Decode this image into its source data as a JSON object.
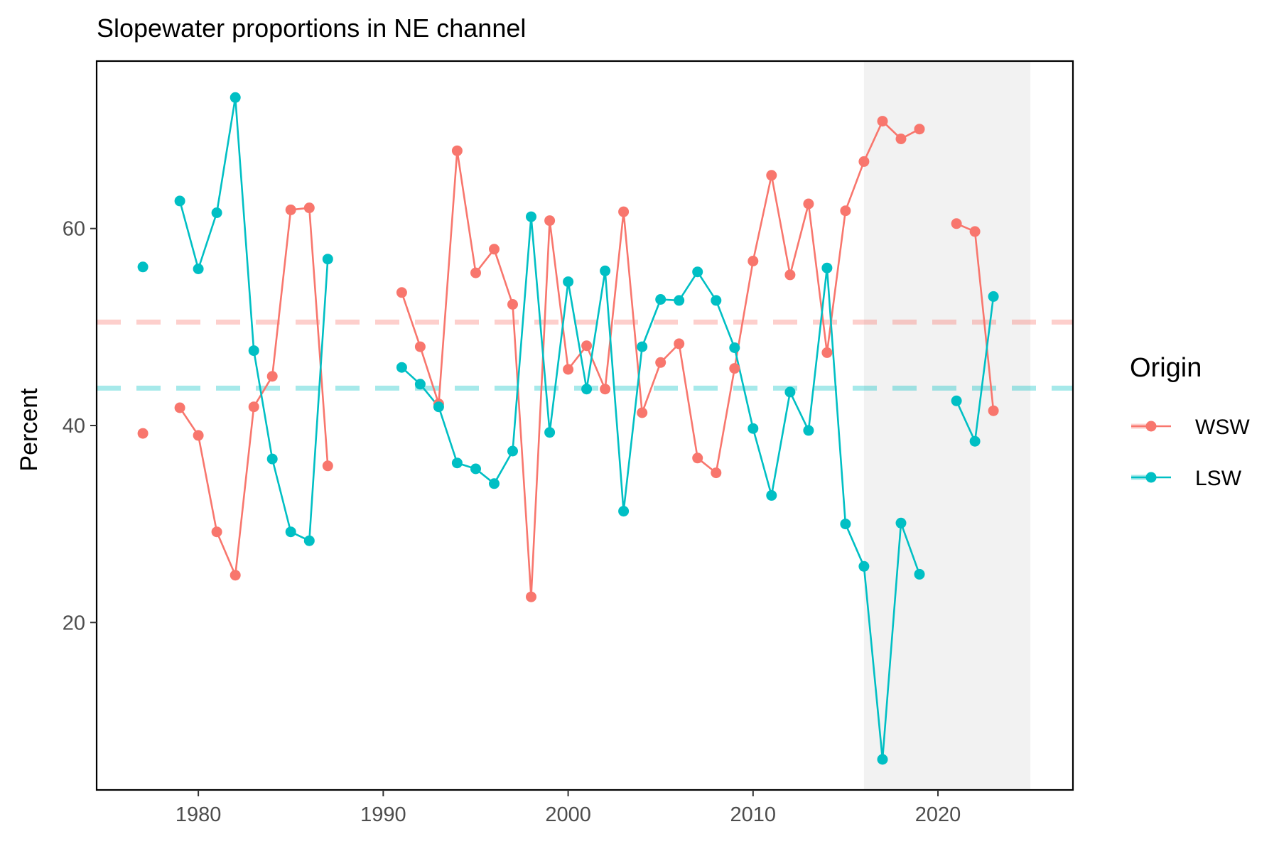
{
  "chart_data": {
    "type": "line",
    "title": "Slopewater proportions in NE channel",
    "xlabel": "",
    "ylabel": "Percent",
    "xlim": [
      1974.5,
      2027.3
    ],
    "ylim": [
      3,
      77
    ],
    "x_ticks": [
      1980,
      1990,
      2000,
      2010,
      2020
    ],
    "x_tick_labels": [
      "1980",
      "1990",
      "2000",
      "2010",
      "2020"
    ],
    "y_ticks": [
      20,
      40,
      60
    ],
    "y_tick_labels": [
      "20",
      "40",
      "60"
    ],
    "grid": false,
    "shaded_region": {
      "x_start": 2016,
      "x_end": 2025,
      "color": "#f2f2f2"
    },
    "legend": {
      "title": "Origin",
      "position": "right",
      "entries": [
        "WSW",
        "LSW"
      ]
    },
    "series": [
      {
        "name": "WSW",
        "color": "#F8766D",
        "mean_line": 50.5,
        "points": [
          [
            1977,
            39.2
          ],
          [
            1979,
            41.8
          ],
          [
            1980,
            39.0
          ],
          [
            1981,
            29.2
          ],
          [
            1982,
            24.8
          ],
          [
            1983,
            41.9
          ],
          [
            1984,
            45.0
          ],
          [
            1985,
            61.9
          ],
          [
            1986,
            62.1
          ],
          [
            1987,
            35.9
          ],
          [
            1991,
            53.5
          ],
          [
            1992,
            48.0
          ],
          [
            1993,
            42.2
          ],
          [
            1994,
            67.9
          ],
          [
            1995,
            55.5
          ],
          [
            1996,
            57.9
          ],
          [
            1997,
            52.3
          ],
          [
            1998,
            22.6
          ],
          [
            1999,
            60.8
          ],
          [
            2000,
            45.7
          ],
          [
            2001,
            48.1
          ],
          [
            2002,
            43.7
          ],
          [
            2003,
            61.7
          ],
          [
            2004,
            41.3
          ],
          [
            2005,
            46.4
          ],
          [
            2006,
            48.3
          ],
          [
            2007,
            36.7
          ],
          [
            2008,
            35.2
          ],
          [
            2009,
            45.8
          ],
          [
            2010,
            56.7
          ],
          [
            2011,
            65.4
          ],
          [
            2012,
            55.3
          ],
          [
            2013,
            62.5
          ],
          [
            2014,
            47.4
          ],
          [
            2015,
            61.8
          ],
          [
            2016,
            66.8
          ],
          [
            2017,
            70.9
          ],
          [
            2018,
            69.1
          ],
          [
            2019,
            70.1
          ],
          [
            2021,
            60.5
          ],
          [
            2022,
            59.7
          ],
          [
            2023,
            41.5
          ]
        ]
      },
      {
        "name": "LSW",
        "color": "#00BFC4",
        "mean_line": 43.8,
        "points": [
          [
            1977,
            56.1
          ],
          [
            1979,
            62.8
          ],
          [
            1980,
            55.9
          ],
          [
            1981,
            61.6
          ],
          [
            1982,
            73.3
          ],
          [
            1983,
            47.6
          ],
          [
            1984,
            36.6
          ],
          [
            1985,
            29.2
          ],
          [
            1986,
            28.3
          ],
          [
            1987,
            56.9
          ],
          [
            1991,
            45.9
          ],
          [
            1992,
            44.2
          ],
          [
            1993,
            41.9
          ],
          [
            1994,
            36.2
          ],
          [
            1995,
            35.6
          ],
          [
            1996,
            34.1
          ],
          [
            1997,
            37.4
          ],
          [
            1998,
            61.2
          ],
          [
            1999,
            39.3
          ],
          [
            2000,
            54.6
          ],
          [
            2001,
            43.7
          ],
          [
            2002,
            55.7
          ],
          [
            2003,
            31.3
          ],
          [
            2004,
            48.0
          ],
          [
            2005,
            52.8
          ],
          [
            2006,
            52.7
          ],
          [
            2007,
            55.6
          ],
          [
            2008,
            52.7
          ],
          [
            2009,
            47.9
          ],
          [
            2010,
            39.7
          ],
          [
            2011,
            32.9
          ],
          [
            2012,
            43.4
          ],
          [
            2013,
            39.5
          ],
          [
            2014,
            56.0
          ],
          [
            2015,
            30.0
          ],
          [
            2016,
            25.7
          ],
          [
            2017,
            6.1
          ],
          [
            2018,
            30.1
          ],
          [
            2019,
            24.9
          ],
          [
            2021,
            42.5
          ],
          [
            2022,
            38.4
          ],
          [
            2023,
            53.1
          ]
        ]
      }
    ]
  }
}
